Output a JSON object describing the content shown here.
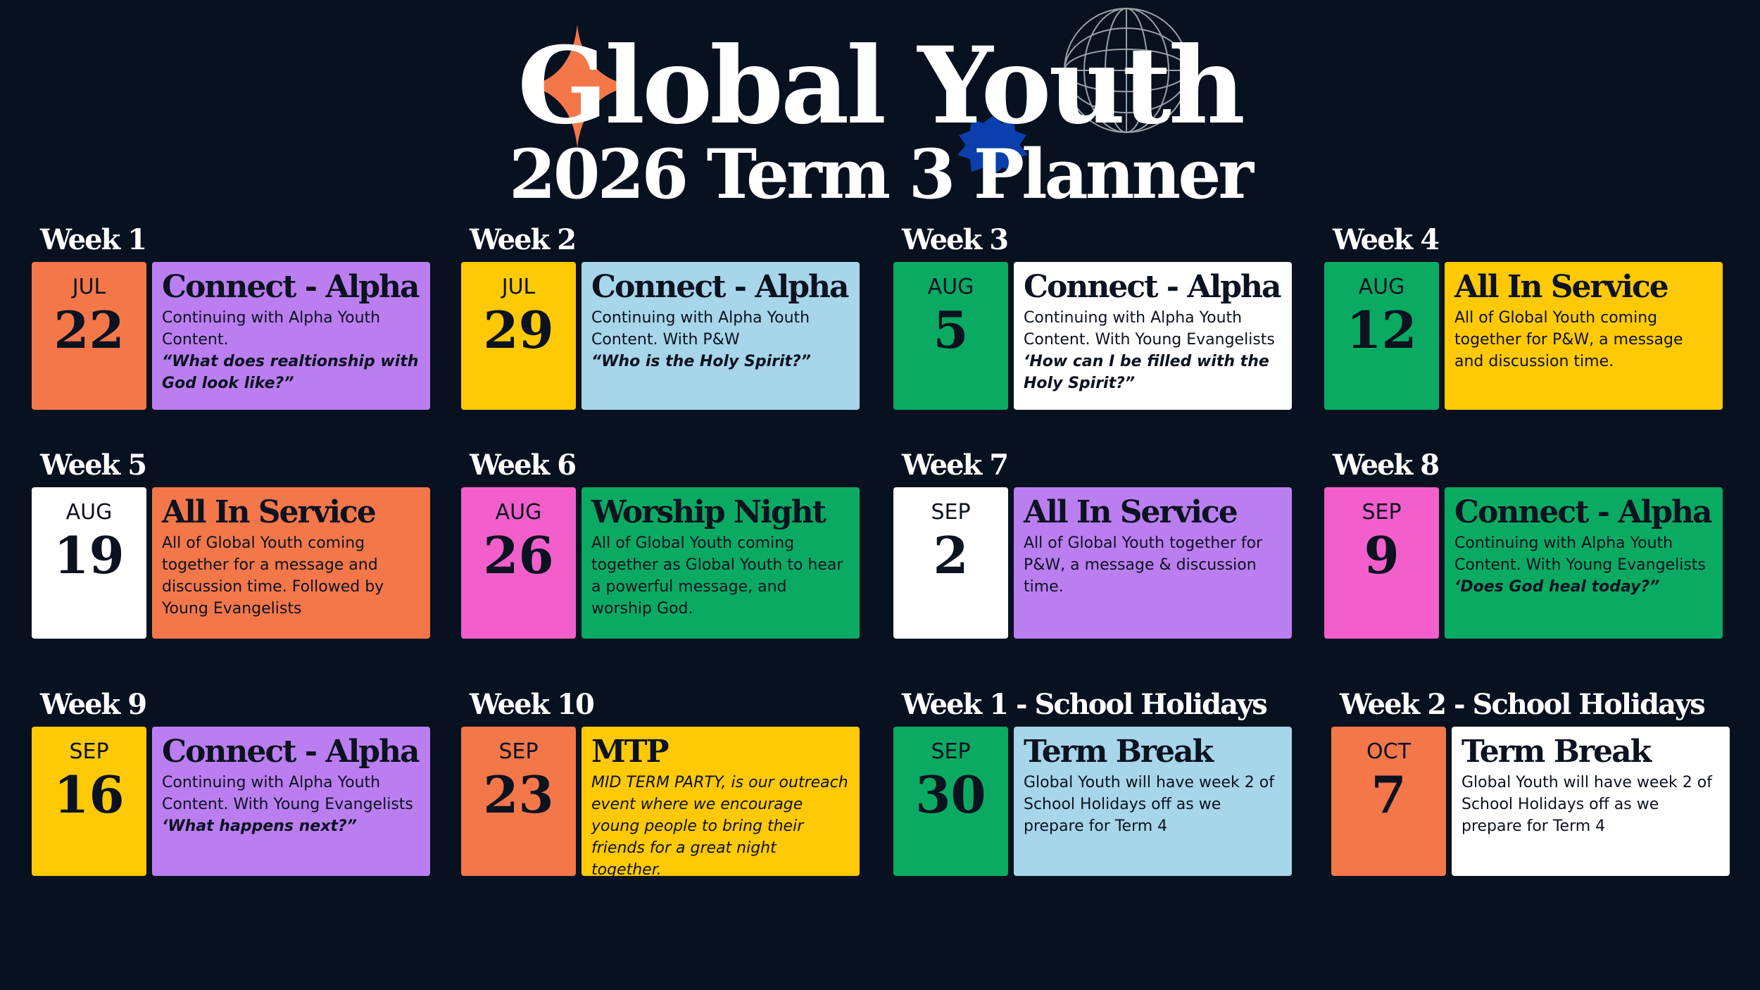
{
  "header": {
    "title": "Global Youth",
    "subtitle": "2026 Term 3 Planner"
  },
  "weeks": [
    {
      "label": "Week 1",
      "month": "JUL",
      "day": 22,
      "heading": "Connect - Alpha",
      "body": "Continuing with Alpha Youth Content.",
      "quote": "“What does realtionship with God look like?”"
    },
    {
      "label": "Week 2",
      "month": "JUL",
      "day": 29,
      "heading": "Connect - Alpha",
      "body": "Continuing with Alpha Youth Content. With P&W",
      "quote": "“Who is the Holy Spirit?”"
    },
    {
      "label": "Week 3",
      "month": "AUG",
      "day": 5,
      "heading": "Connect - Alpha",
      "body": "Continuing with Alpha Youth Content. With Young Evangelists",
      "quote": "‘How can I be filled with the Holy Spirit?”"
    },
    {
      "label": "Week 4",
      "month": "AUG",
      "day": 12,
      "heading": "All In Service",
      "body": "All of Global Youth coming together for P&W, a message and discussion time."
    },
    {
      "label": "Week 5",
      "month": "AUG",
      "day": 19,
      "heading": "All In Service",
      "body": "All of Global Youth coming together for a message and discussion time. Followed by Young Evangelists"
    },
    {
      "label": "Week 6",
      "month": "AUG",
      "day": 26,
      "heading": "Worship Night",
      "body": "All of Global Youth coming together as Global Youth to hear a powerful message, and worship God."
    },
    {
      "label": "Week 7",
      "month": "SEP",
      "day": 2,
      "heading": "All In Service",
      "body": "All of Global Youth together for P&W, a message & discussion time."
    },
    {
      "label": "Week 8",
      "month": "SEP",
      "day": 9,
      "heading": "Connect - Alpha",
      "body": "Continuing with Alpha Youth Content. With Young Evangelists",
      "quote": "‘Does God heal today?”"
    },
    {
      "label": "Week 9",
      "month": "SEP",
      "day": 16,
      "heading": "Connect - Alpha",
      "body": "Continuing with Alpha Youth Content. With Young Evangelists",
      "quote": "‘What happens next?”"
    },
    {
      "label": "Week 10",
      "month": "SEP",
      "day": 23,
      "heading": "MTP",
      "body": "MID TERM PARTY, is our outreach event where we encourage young people to bring their friends for a great night together."
    },
    {
      "label": "Week 1 - School Holidays",
      "month": "SEP",
      "day": 30,
      "heading": "Term Break",
      "body": "Global Youth will have week 2 of School Holidays off as we prepare for Term 4"
    },
    {
      "label": "Week 2 - School Holidays",
      "month": "OCT",
      "day": 7,
      "heading": "Term Break",
      "body": "Global Youth will have week 2 of School Holidays off as we prepare for Term 4"
    }
  ]
}
